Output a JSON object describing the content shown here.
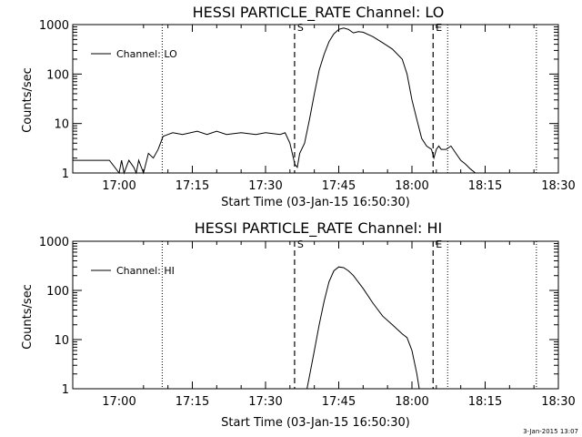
{
  "footer": {
    "timestamp": "3-Jan-2015 13:07"
  },
  "chart_data": [
    {
      "type": "line",
      "title": "HESSI PARTICLE_RATE Channel: LO",
      "xlabel": "Start Time (03-Jan-15 16:50:30)",
      "ylabel": "Counts/sec",
      "yscale": "log",
      "xlim": [
        "16:50:30",
        "18:30:00"
      ],
      "ylim": [
        1,
        1000
      ],
      "x_ticks": [
        "17:00",
        "17:15",
        "17:30",
        "17:45",
        "18:00",
        "18:15",
        "18:30"
      ],
      "y_ticks": [
        "1",
        "10",
        "100",
        "1000"
      ],
      "grid": false,
      "legend_position": "top-left",
      "markers": [
        {
          "label": "S",
          "time": "17:35:57",
          "style": "dashed"
        },
        {
          "label": "E",
          "time": "18:07:19",
          "style": "dashed-dotted"
        }
      ],
      "dotted_lines": [
        "17:08:50",
        "18:07:19",
        "18:25:30"
      ],
      "series": [
        {
          "name": "Channel: LO",
          "x": [
            "16:50:30",
            "16:58:00",
            "17:00:00",
            "17:00:30",
            "17:01:00",
            "17:02:00",
            "17:03:00",
            "17:03:30",
            "17:04:00",
            "17:05:00",
            "17:06:00",
            "17:07:00",
            "17:08:00",
            "17:09:00",
            "17:10:00",
            "17:11:00",
            "17:13:00",
            "17:16:00",
            "17:18:00",
            "17:20:00",
            "17:22:00",
            "17:25:00",
            "17:28:00",
            "17:30:00",
            "17:33:00",
            "17:34:00",
            "17:35:00",
            "17:36:00",
            "17:36:30",
            "17:37:00",
            "17:38:00",
            "17:39:00",
            "17:40:00",
            "17:41:00",
            "17:42:00",
            "17:43:00",
            "17:44:00",
            "17:45:00",
            "17:46:00",
            "17:47:00",
            "17:48:00",
            "17:49:00",
            "17:50:00",
            "17:52:00",
            "17:54:00",
            "17:56:00",
            "17:58:00",
            "17:59:00",
            "18:00:00",
            "18:01:00",
            "18:02:00",
            "18:03:00",
            "18:04:00",
            "18:04:30",
            "18:05:00",
            "18:05:30",
            "18:06:00",
            "18:07:00",
            "18:08:00",
            "18:09:00",
            "18:10:00",
            "18:11:00",
            "18:12:00",
            "18:13:00"
          ],
          "y": [
            1.8,
            1.8,
            1.0,
            1.8,
            1.0,
            1.8,
            1.3,
            1.0,
            1.8,
            1.0,
            2.5,
            2.0,
            3.0,
            5.5,
            6.0,
            6.5,
            6.0,
            7.0,
            6.0,
            7.0,
            6.0,
            6.5,
            6.0,
            6.5,
            6.0,
            6.5,
            4.0,
            1.5,
            1.3,
            2.5,
            4.0,
            12.0,
            40.0,
            120.0,
            250.0,
            450.0,
            650.0,
            800.0,
            850.0,
            800.0,
            680.0,
            720.0,
            700.0,
            570.0,
            430.0,
            320.0,
            200.0,
            100.0,
            30.0,
            12.0,
            5.0,
            3.5,
            3.0,
            2.0,
            3.0,
            3.5,
            3.0,
            3.0,
            3.5,
            2.5,
            1.8,
            1.5,
            1.2,
            1.0
          ]
        }
      ]
    },
    {
      "type": "line",
      "title": "HESSI PARTICLE_RATE Channel: HI",
      "xlabel": "Start Time (03-Jan-15 16:50:30)",
      "ylabel": "Counts/sec",
      "yscale": "log",
      "xlim": [
        "16:50:30",
        "18:30:00"
      ],
      "ylim": [
        1,
        1000
      ],
      "x_ticks": [
        "17:00",
        "17:15",
        "17:30",
        "17:45",
        "18:00",
        "18:15",
        "18:30"
      ],
      "y_ticks": [
        "1",
        "10",
        "100",
        "1000"
      ],
      "grid": false,
      "legend_position": "top-left",
      "markers": [
        {
          "label": "S",
          "time": "17:35:57",
          "style": "dashed"
        },
        {
          "label": "E",
          "time": "18:07:19",
          "style": "dashed-dotted"
        }
      ],
      "dotted_lines": [
        "17:08:50",
        "18:07:19",
        "18:25:30"
      ],
      "series": [
        {
          "name": "Channel: HI",
          "x": [
            "17:38:30",
            "17:39:00",
            "17:40:00",
            "17:41:00",
            "17:42:00",
            "17:43:00",
            "17:44:00",
            "17:45:00",
            "17:46:00",
            "17:47:00",
            "17:48:00",
            "17:50:00",
            "17:52:00",
            "17:54:00",
            "17:56:00",
            "17:58:00",
            "17:59:00",
            "18:00:00",
            "18:01:00",
            "18:01:30"
          ],
          "y": [
            1.0,
            1.8,
            6.0,
            20.0,
            60.0,
            150.0,
            250.0,
            300.0,
            290.0,
            250.0,
            200.0,
            110.0,
            55.0,
            30.0,
            20.0,
            13.0,
            11.0,
            6.0,
            2.0,
            1.0
          ]
        }
      ]
    }
  ]
}
